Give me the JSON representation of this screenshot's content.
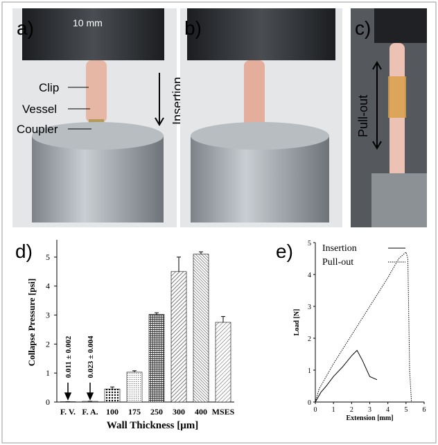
{
  "panels": {
    "a": "a)",
    "b": "b)",
    "c": "c)"
  },
  "photos": {
    "scale": "10 mm",
    "clip": "Clip",
    "vessel": "Vessel",
    "coupler": "Coupler",
    "insertion": "Insertion",
    "pullout": "Pull-out"
  },
  "chart_data": [
    {
      "type": "bar",
      "panel": "d)",
      "ylabel": "Collapse Pressure [psi]",
      "xlabel": "Wall Thickness [μm]",
      "categories": [
        "F. V.",
        "F. A.",
        "100",
        "175",
        "250",
        "300",
        "400",
        "MSES"
      ],
      "values": [
        0.011,
        0.023,
        0.45,
        1.03,
        3.02,
        4.5,
        5.1,
        2.75
      ],
      "errors": [
        0.002,
        0.004,
        0.07,
        0.05,
        0.06,
        0.5,
        0.08,
        0.2
      ],
      "annotations": [
        "0.011 ± 0.002",
        "0.023 ± 0.004"
      ],
      "ylim": [
        0,
        5.5
      ],
      "yticks": [
        0,
        1,
        2,
        3,
        4,
        5
      ]
    },
    {
      "type": "line",
      "panel": "e)",
      "ylabel": "Load [N]",
      "xlabel": "Extension [mm]",
      "series": [
        {
          "name": "Insertion",
          "style": "solid",
          "x": [
            0,
            0.3,
            0.6,
            1,
            1.5,
            2,
            2.3,
            2.6,
            3,
            3.4
          ],
          "values": [
            0,
            0.3,
            0.5,
            0.8,
            1.1,
            1.45,
            1.62,
            1.3,
            0.8,
            0.7
          ]
        },
        {
          "name": "Pull-out",
          "style": "dotted",
          "x": [
            0,
            0.2,
            0.5,
            1,
            2,
            3,
            4,
            4.6,
            5,
            5.1,
            5.2,
            5.3
          ],
          "values": [
            0,
            0.4,
            0.7,
            1.2,
            2.1,
            3.0,
            3.9,
            4.5,
            4.7,
            4.5,
            1,
            0
          ]
        }
      ],
      "xlim": [
        0,
        6
      ],
      "xticks": [
        0,
        1,
        2,
        3,
        4,
        5,
        6
      ],
      "ylim": [
        0,
        5
      ],
      "yticks": [
        0,
        1,
        2,
        3,
        4,
        5
      ]
    }
  ]
}
